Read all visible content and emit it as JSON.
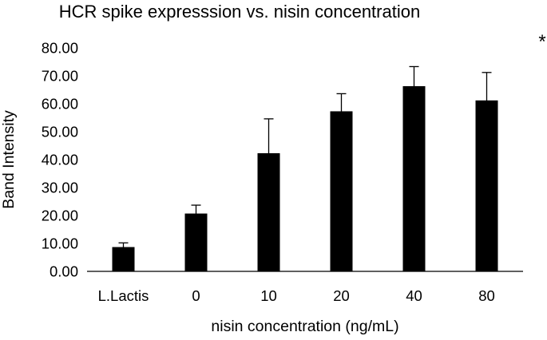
{
  "chart_data": {
    "type": "bar",
    "title": "HCR spike expresssion vs. nisin concentration",
    "xlabel": "nisin concentration (ng/mL)",
    "ylabel": "Band Intensity",
    "categories": [
      "L.Lactis",
      "0",
      "10",
      "20",
      "40",
      "80"
    ],
    "values": [
      8.7,
      20.7,
      42.3,
      57.3,
      66.3,
      61.2
    ],
    "error_bars": [
      1.5,
      3.0,
      12.3,
      6.3,
      7.0,
      10.0
    ],
    "yticks": [
      "0.00",
      "10.00",
      "20.00",
      "30.00",
      "40.00",
      "50.00",
      "60.00",
      "70.00",
      "80.00"
    ],
    "ylim": [
      0,
      80
    ],
    "bar_color": "#000000",
    "grid": false,
    "legend": "none",
    "annotation": "*"
  }
}
